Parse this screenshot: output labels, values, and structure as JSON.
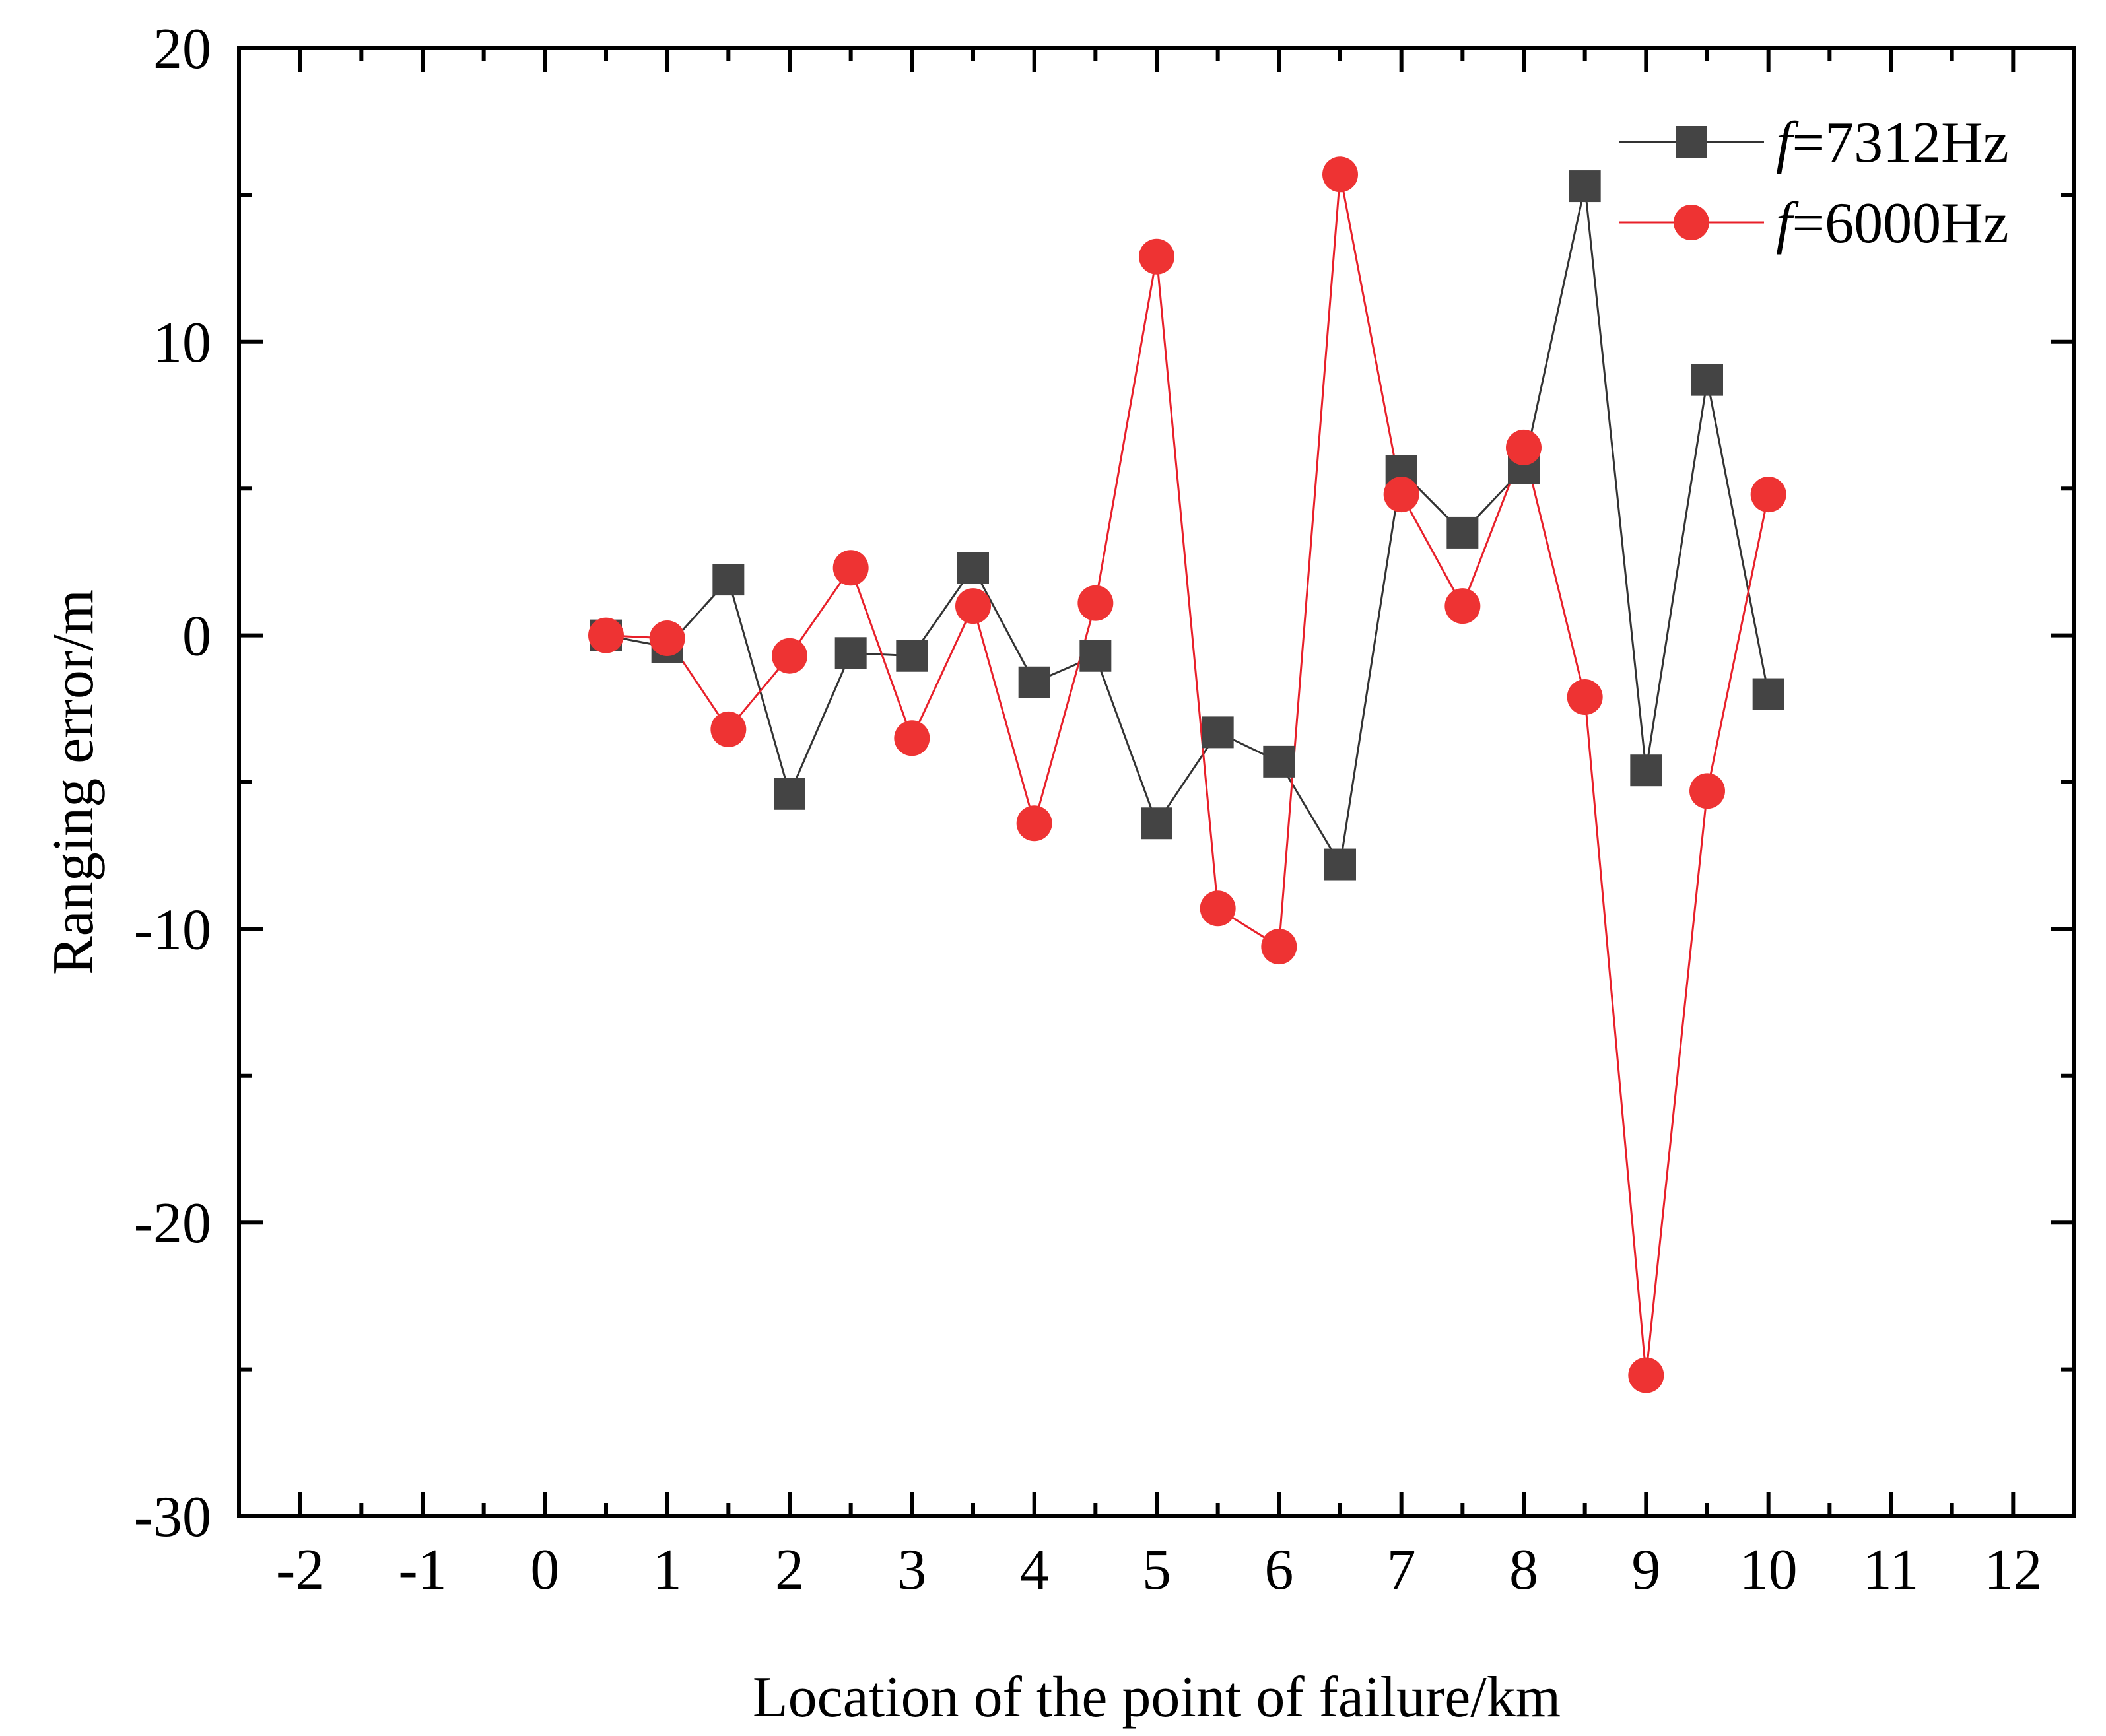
{
  "chart_data": {
    "type": "line",
    "title": "",
    "xlabel": "Location of the point of failure/km",
    "ylabel": "Ranging error/m",
    "xlim": [
      -2.5,
      12.5
    ],
    "ylim": [
      -30,
      20
    ],
    "xticks": [
      -2,
      -1,
      0,
      1,
      2,
      3,
      4,
      5,
      6,
      7,
      8,
      9,
      10,
      11,
      12
    ],
    "xtick_labels": [
      "-2",
      "-1",
      "0",
      "1",
      "2",
      "3",
      "4",
      "5",
      "6",
      "7",
      "8",
      "9",
      "10",
      "11",
      "12"
    ],
    "yticks": [
      -30,
      -20,
      -10,
      0,
      10,
      20
    ],
    "ytick_labels": [
      "-30",
      "-20",
      "-10",
      "0",
      "10",
      "20"
    ],
    "legend_position": "top-right",
    "x": [
      0.5,
      1,
      1.5,
      2,
      2.5,
      3,
      3.5,
      4,
      4.5,
      5,
      5.5,
      6,
      6.5,
      7,
      7.5,
      8,
      8.5,
      9,
      9.5,
      10
    ],
    "series": [
      {
        "name": "f=7312Hz",
        "name_italic": "f",
        "name_rest": "=7312Hz",
        "marker": "square",
        "color": "#444444",
        "line_color": "#333333",
        "values": [
          0.0,
          -0.4,
          1.9,
          -5.4,
          -0.6,
          -0.7,
          2.3,
          -1.6,
          -0.7,
          -6.4,
          -3.3,
          -4.3,
          -7.8,
          5.6,
          3.5,
          5.7,
          15.3,
          -4.6,
          8.7,
          -2.0
        ]
      },
      {
        "name": "f=6000Hz",
        "name_italic": "f",
        "name_rest": "=6000Hz",
        "marker": "circle",
        "color": "#ee3333",
        "line_color": "#e8202a",
        "values": [
          0.0,
          -0.1,
          -3.2,
          -0.7,
          2.3,
          -3.5,
          1.0,
          -6.4,
          1.1,
          12.9,
          -9.3,
          -10.6,
          15.7,
          4.8,
          1.0,
          6.4,
          -2.1,
          -25.2,
          -5.3,
          4.8
        ]
      }
    ]
  }
}
